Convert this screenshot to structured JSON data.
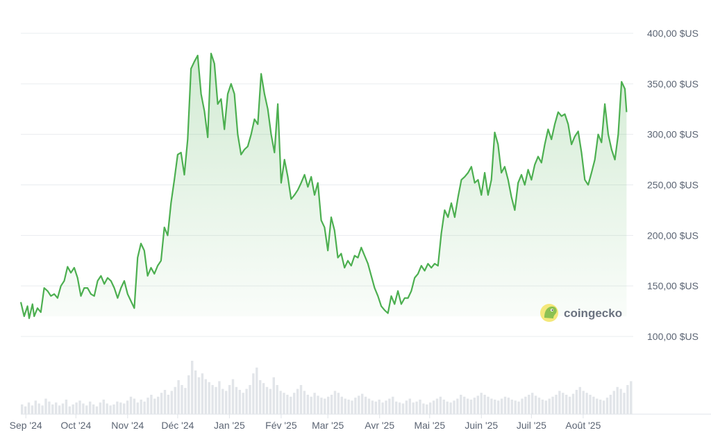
{
  "watermark": {
    "text": "coingecko",
    "icon": "gecko-logo-icon"
  },
  "colors": {
    "line": "#4caf50",
    "area_top": "#4caf50",
    "grid": "#e9ecef",
    "volume": "#e2e5e9",
    "text": "#5b6473"
  },
  "chart_data": {
    "type": "line",
    "title": "",
    "xlabel": "",
    "ylabel": "",
    "ylim": [
      100,
      400
    ],
    "grid": true,
    "y_ticks": [
      {
        "value": 400,
        "label": "400,00 $US"
      },
      {
        "value": 350,
        "label": "350,00 $US"
      },
      {
        "value": 300,
        "label": "300,00 $US"
      },
      {
        "value": 250,
        "label": "250,00 $US"
      },
      {
        "value": 200,
        "label": "200,00 $US"
      },
      {
        "value": 150,
        "label": "150,00 $US"
      },
      {
        "value": 100,
        "label": "100,00 $US"
      }
    ],
    "x_range": [
      "2024-08-29",
      "2025-08-31"
    ],
    "x_ticks": [
      {
        "date": "2024-09-01",
        "label": "Sep '24"
      },
      {
        "date": "2024-10-01",
        "label": "Oct '24"
      },
      {
        "date": "2024-11-01",
        "label": "Nov '24"
      },
      {
        "date": "2024-12-01",
        "label": "Déc '24"
      },
      {
        "date": "2025-01-01",
        "label": "Jan '25"
      },
      {
        "date": "2025-02-01",
        "label": "Fév '25"
      },
      {
        "date": "2025-03-01",
        "label": "Mar '25"
      },
      {
        "date": "2025-04-01",
        "label": "Avr '25"
      },
      {
        "date": "2025-05-01",
        "label": "Mai '25"
      },
      {
        "date": "2025-06-01",
        "label": "Juin '25"
      },
      {
        "date": "2025-07-01",
        "label": "Juil '25"
      },
      {
        "date": "2025-08-01",
        "label": "Août '25"
      }
    ],
    "series": [
      {
        "points": [
          [
            "2024-08-29",
            134
          ],
          [
            "2024-08-31",
            120
          ],
          [
            "2024-09-02",
            130
          ],
          [
            "2024-09-03",
            118
          ],
          [
            "2024-09-05",
            132
          ],
          [
            "2024-09-06",
            120
          ],
          [
            "2024-09-08",
            128
          ],
          [
            "2024-09-10",
            124
          ],
          [
            "2024-09-12",
            148
          ],
          [
            "2024-09-14",
            145
          ],
          [
            "2024-09-16",
            140
          ],
          [
            "2024-09-18",
            142
          ],
          [
            "2024-09-20",
            138
          ],
          [
            "2024-09-22",
            150
          ],
          [
            "2024-09-24",
            155
          ],
          [
            "2024-09-26",
            169
          ],
          [
            "2024-09-28",
            163
          ],
          [
            "2024-09-30",
            168
          ],
          [
            "2024-10-02",
            158
          ],
          [
            "2024-10-04",
            140
          ],
          [
            "2024-10-06",
            148
          ],
          [
            "2024-10-08",
            148
          ],
          [
            "2024-10-10",
            142
          ],
          [
            "2024-10-12",
            140
          ],
          [
            "2024-10-14",
            155
          ],
          [
            "2024-10-16",
            160
          ],
          [
            "2024-10-18",
            152
          ],
          [
            "2024-10-20",
            158
          ],
          [
            "2024-10-22",
            155
          ],
          [
            "2024-10-24",
            148
          ],
          [
            "2024-10-26",
            138
          ],
          [
            "2024-10-28",
            148
          ],
          [
            "2024-10-30",
            155
          ],
          [
            "2024-11-01",
            142
          ],
          [
            "2024-11-03",
            135
          ],
          [
            "2024-11-05",
            128
          ],
          [
            "2024-11-07",
            178
          ],
          [
            "2024-11-09",
            192
          ],
          [
            "2024-11-11",
            185
          ],
          [
            "2024-11-13",
            160
          ],
          [
            "2024-11-15",
            168
          ],
          [
            "2024-11-17",
            162
          ],
          [
            "2024-11-19",
            170
          ],
          [
            "2024-11-21",
            175
          ],
          [
            "2024-11-23",
            208
          ],
          [
            "2024-11-25",
            200
          ],
          [
            "2024-11-27",
            232
          ],
          [
            "2024-11-29",
            255
          ],
          [
            "2024-12-01",
            280
          ],
          [
            "2024-12-03",
            282
          ],
          [
            "2024-12-05",
            260
          ],
          [
            "2024-12-07",
            295
          ],
          [
            "2024-12-09",
            365
          ],
          [
            "2024-12-11",
            372
          ],
          [
            "2024-12-13",
            378
          ],
          [
            "2024-12-15",
            340
          ],
          [
            "2024-12-17",
            323
          ],
          [
            "2024-12-19",
            297
          ],
          [
            "2024-12-21",
            380
          ],
          [
            "2024-12-23",
            370
          ],
          [
            "2024-12-25",
            330
          ],
          [
            "2024-12-27",
            335
          ],
          [
            "2024-12-29",
            305
          ],
          [
            "2024-12-31",
            340
          ],
          [
            "2025-01-02",
            350
          ],
          [
            "2025-01-04",
            340
          ],
          [
            "2025-01-06",
            300
          ],
          [
            "2025-01-08",
            280
          ],
          [
            "2025-01-10",
            285
          ],
          [
            "2025-01-12",
            288
          ],
          [
            "2025-01-14",
            300
          ],
          [
            "2025-01-16",
            315
          ],
          [
            "2025-01-18",
            310
          ],
          [
            "2025-01-20",
            360
          ],
          [
            "2025-01-22",
            340
          ],
          [
            "2025-01-24",
            325
          ],
          [
            "2025-01-26",
            300
          ],
          [
            "2025-01-28",
            282
          ],
          [
            "2025-01-30",
            330
          ],
          [
            "2025-02-01",
            252
          ],
          [
            "2025-02-03",
            275
          ],
          [
            "2025-02-05",
            258
          ],
          [
            "2025-02-07",
            236
          ],
          [
            "2025-02-09",
            240
          ],
          [
            "2025-02-11",
            245
          ],
          [
            "2025-02-13",
            252
          ],
          [
            "2025-02-15",
            260
          ],
          [
            "2025-02-17",
            248
          ],
          [
            "2025-02-19",
            258
          ],
          [
            "2025-02-21",
            240
          ],
          [
            "2025-02-23",
            252
          ],
          [
            "2025-02-25",
            215
          ],
          [
            "2025-02-27",
            208
          ],
          [
            "2025-03-01",
            185
          ],
          [
            "2025-03-03",
            218
          ],
          [
            "2025-03-05",
            205
          ],
          [
            "2025-03-07",
            178
          ],
          [
            "2025-03-09",
            182
          ],
          [
            "2025-03-11",
            168
          ],
          [
            "2025-03-13",
            175
          ],
          [
            "2025-03-15",
            170
          ],
          [
            "2025-03-17",
            180
          ],
          [
            "2025-03-19",
            178
          ],
          [
            "2025-03-21",
            188
          ],
          [
            "2025-03-23",
            180
          ],
          [
            "2025-03-25",
            172
          ],
          [
            "2025-03-27",
            160
          ],
          [
            "2025-03-29",
            148
          ],
          [
            "2025-03-31",
            140
          ],
          [
            "2025-04-02",
            130
          ],
          [
            "2025-04-04",
            126
          ],
          [
            "2025-04-06",
            123
          ],
          [
            "2025-04-08",
            140
          ],
          [
            "2025-04-10",
            132
          ],
          [
            "2025-04-12",
            145
          ],
          [
            "2025-04-14",
            132
          ],
          [
            "2025-04-16",
            138
          ],
          [
            "2025-04-18",
            138
          ],
          [
            "2025-04-20",
            145
          ],
          [
            "2025-04-22",
            158
          ],
          [
            "2025-04-24",
            162
          ],
          [
            "2025-04-26",
            170
          ],
          [
            "2025-04-28",
            165
          ],
          [
            "2025-04-30",
            172
          ],
          [
            "2025-05-02",
            168
          ],
          [
            "2025-05-04",
            172
          ],
          [
            "2025-05-06",
            170
          ],
          [
            "2025-05-08",
            202
          ],
          [
            "2025-05-10",
            225
          ],
          [
            "2025-05-12",
            218
          ],
          [
            "2025-05-14",
            232
          ],
          [
            "2025-05-16",
            218
          ],
          [
            "2025-05-18",
            238
          ],
          [
            "2025-05-20",
            255
          ],
          [
            "2025-05-22",
            258
          ],
          [
            "2025-05-24",
            262
          ],
          [
            "2025-05-26",
            268
          ],
          [
            "2025-05-28",
            252
          ],
          [
            "2025-05-30",
            255
          ],
          [
            "2025-06-01",
            240
          ],
          [
            "2025-06-03",
            262
          ],
          [
            "2025-06-05",
            240
          ],
          [
            "2025-06-07",
            255
          ],
          [
            "2025-06-09",
            302
          ],
          [
            "2025-06-11",
            290
          ],
          [
            "2025-06-13",
            262
          ],
          [
            "2025-06-15",
            268
          ],
          [
            "2025-06-17",
            255
          ],
          [
            "2025-06-19",
            238
          ],
          [
            "2025-06-21",
            225
          ],
          [
            "2025-06-23",
            252
          ],
          [
            "2025-06-25",
            260
          ],
          [
            "2025-06-27",
            250
          ],
          [
            "2025-06-29",
            265
          ],
          [
            "2025-07-01",
            255
          ],
          [
            "2025-07-03",
            270
          ],
          [
            "2025-07-05",
            278
          ],
          [
            "2025-07-07",
            272
          ],
          [
            "2025-07-09",
            290
          ],
          [
            "2025-07-11",
            305
          ],
          [
            "2025-07-13",
            295
          ],
          [
            "2025-07-15",
            310
          ],
          [
            "2025-07-17",
            322
          ],
          [
            "2025-07-19",
            318
          ],
          [
            "2025-07-21",
            320
          ],
          [
            "2025-07-23",
            310
          ],
          [
            "2025-07-25",
            290
          ],
          [
            "2025-07-27",
            298
          ],
          [
            "2025-07-29",
            303
          ],
          [
            "2025-07-31",
            282
          ],
          [
            "2025-08-02",
            255
          ],
          [
            "2025-08-04",
            250
          ],
          [
            "2025-08-06",
            262
          ],
          [
            "2025-08-08",
            275
          ],
          [
            "2025-08-10",
            300
          ],
          [
            "2025-08-12",
            292
          ],
          [
            "2025-08-14",
            330
          ],
          [
            "2025-08-16",
            300
          ],
          [
            "2025-08-18",
            285
          ],
          [
            "2025-08-20",
            275
          ],
          [
            "2025-08-22",
            300
          ],
          [
            "2025-08-24",
            352
          ],
          [
            "2025-08-26",
            345
          ],
          [
            "2025-08-27",
            322
          ]
        ]
      }
    ],
    "volume": [
      10,
      8,
      12,
      9,
      14,
      11,
      9,
      16,
      13,
      10,
      12,
      9,
      11,
      15,
      8,
      10,
      12,
      14,
      11,
      9,
      13,
      10,
      8,
      12,
      15,
      11,
      9,
      10,
      13,
      12,
      11,
      14,
      18,
      16,
      12,
      15,
      13,
      17,
      20,
      16,
      18,
      22,
      25,
      20,
      24,
      28,
      35,
      30,
      27,
      40,
      55,
      45,
      38,
      42,
      36,
      33,
      30,
      28,
      34,
      26,
      24,
      30,
      36,
      28,
      25,
      22,
      26,
      30,
      42,
      48,
      35,
      32,
      28,
      26,
      38,
      30,
      24,
      22,
      20,
      18,
      22,
      26,
      30,
      24,
      20,
      18,
      22,
      19,
      17,
      16,
      18,
      20,
      24,
      22,
      18,
      16,
      15,
      14,
      17,
      19,
      21,
      18,
      16,
      14,
      13,
      15,
      12,
      14,
      16,
      18,
      13,
      12,
      11,
      14,
      16,
      12,
      13,
      15,
      11,
      10,
      12,
      14,
      16,
      18,
      15,
      13,
      12,
      14,
      16,
      20,
      18,
      16,
      15,
      17,
      19,
      22,
      20,
      18,
      16,
      15,
      14,
      16,
      18,
      17,
      15,
      14,
      13,
      16,
      18,
      20,
      22,
      19,
      17,
      15,
      14,
      16,
      18,
      20,
      24,
      22,
      20,
      18,
      21,
      25,
      28,
      24,
      22,
      20,
      18,
      16,
      15,
      14,
      17,
      20,
      24,
      28,
      26,
      22,
      30,
      34
    ]
  }
}
